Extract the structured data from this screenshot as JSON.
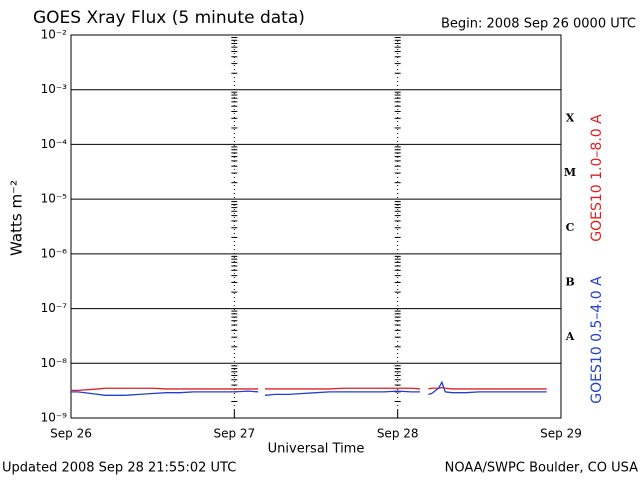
{
  "chart_data": {
    "type": "line",
    "title": "GOES Xray Flux (5 minute data)",
    "subtitle": "Begin:  2008 Sep 26 0000 UTC",
    "x_label": "Universal Time",
    "y_label": "Watts m⁻²",
    "footer_left": "Updated 2008 Sep 28 21:55:02 UTC",
    "footer_right": "NOAA/SWPC Boulder, CO USA",
    "log_scale": true,
    "grid": true,
    "xlim": [
      0,
      72
    ],
    "xticks": [
      {
        "value": 0,
        "label": "Sep 26"
      },
      {
        "value": 24,
        "label": "Sep 27"
      },
      {
        "value": 48,
        "label": "Sep 28"
      },
      {
        "value": 72,
        "label": "Sep 29"
      }
    ],
    "ylim": [
      1e-09,
      0.01
    ],
    "yticks": [
      {
        "value": 1e-09,
        "label": "10⁻⁹"
      },
      {
        "value": 1e-08,
        "label": "10⁻⁸"
      },
      {
        "value": 1e-07,
        "label": "10⁻⁷"
      },
      {
        "value": 1e-06,
        "label": "10⁻⁶"
      },
      {
        "value": 1e-05,
        "label": "10⁻⁵"
      },
      {
        "value": 0.0001,
        "label": "10⁻⁴"
      },
      {
        "value": 0.001,
        "label": "10⁻³"
      },
      {
        "value": 0.01,
        "label": "10⁻²"
      }
    ],
    "class_labels": [
      {
        "value": 0.0003,
        "label": "X"
      },
      {
        "value": 3e-05,
        "label": "M"
      },
      {
        "value": 3e-06,
        "label": "C"
      },
      {
        "value": 3e-07,
        "label": "B"
      },
      {
        "value": 3e-08,
        "label": "A"
      }
    ],
    "x": [
      0,
      1,
      4,
      5,
      8,
      10,
      12,
      14,
      16,
      18,
      20,
      22,
      24,
      26,
      27.5,
      28,
      28.5,
      30,
      32,
      34,
      36,
      38,
      40,
      42,
      44,
      46,
      48,
      50,
      51.3,
      52,
      52.5,
      53,
      54,
      54.5,
      55,
      56,
      58,
      60,
      62,
      64,
      66,
      68,
      69.9
    ],
    "series": [
      {
        "name": "GOES10 1.0–8.0 A",
        "color": "#e02020",
        "values": [
          3.2e-09,
          3.2e-09,
          3.4e-09,
          3.5e-09,
          3.5e-09,
          3.5e-09,
          3.5e-09,
          3.4e-09,
          3.4e-09,
          3.4e-09,
          3.4e-09,
          3.4e-09,
          3.4e-09,
          3.4e-09,
          3.4e-09,
          null,
          3.4e-09,
          3.4e-09,
          3.4e-09,
          3.4e-09,
          3.4e-09,
          3.4e-09,
          3.5e-09,
          3.5e-09,
          3.5e-09,
          3.5e-09,
          3.5e-09,
          3.5e-09,
          3.4e-09,
          null,
          3.4e-09,
          3.5e-09,
          3.5e-09,
          3.6e-09,
          3.5e-09,
          3.4e-09,
          3.4e-09,
          3.4e-09,
          3.4e-09,
          3.4e-09,
          3.4e-09,
          3.4e-09,
          3.4e-09
        ]
      },
      {
        "name": "GOES10 0.5–4.0 A",
        "color": "#2040d0",
        "values": [
          3e-09,
          3e-09,
          2.7e-09,
          2.6e-09,
          2.6e-09,
          2.7e-09,
          2.8e-09,
          2.9e-09,
          2.9e-09,
          3e-09,
          3e-09,
          3e-09,
          3e-09,
          3.1e-09,
          3e-09,
          null,
          2.6e-09,
          2.7e-09,
          2.7e-09,
          2.8e-09,
          2.9e-09,
          3e-09,
          3e-09,
          3e-09,
          3e-09,
          3e-09,
          3.1e-09,
          3e-09,
          3e-09,
          null,
          2.7e-09,
          2.8e-09,
          3.5e-09,
          4.5e-09,
          3e-09,
          2.9e-09,
          2.9e-09,
          3e-09,
          3e-09,
          3e-09,
          3e-09,
          3e-09,
          3e-09
        ]
      }
    ]
  }
}
